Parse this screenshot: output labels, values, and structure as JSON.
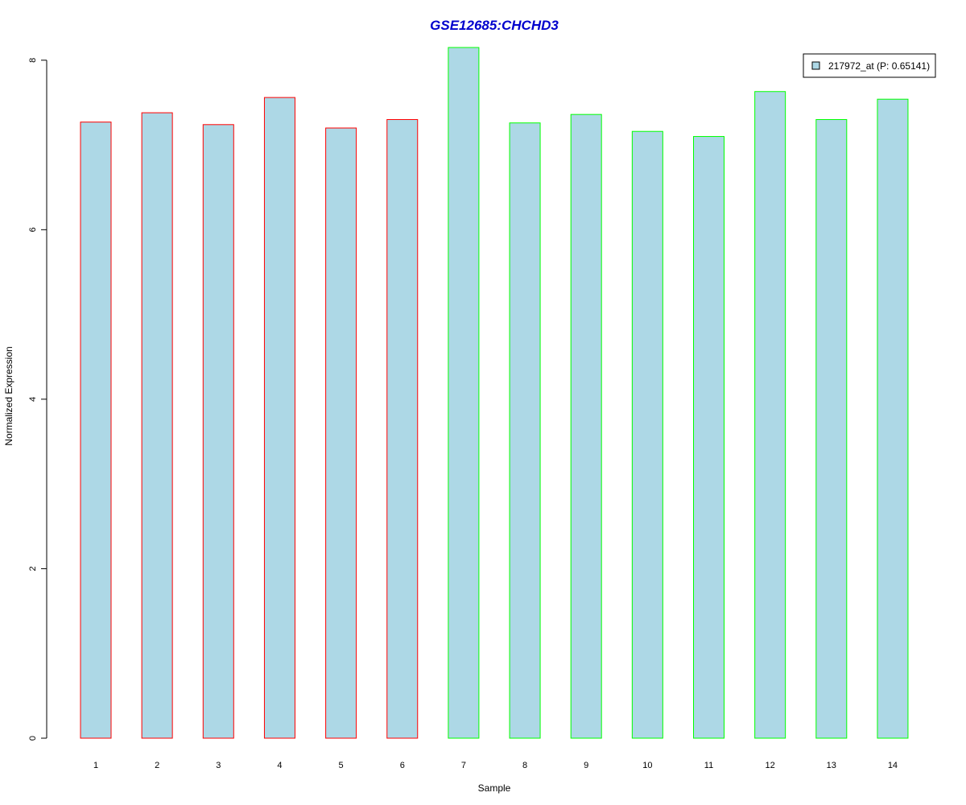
{
  "chart_data": {
    "type": "bar",
    "title": "GSE12685:CHCHD3",
    "xlabel": "Sample",
    "ylabel": "Normalized Expression",
    "categories": [
      "1",
      "2",
      "3",
      "4",
      "5",
      "6",
      "7",
      "8",
      "9",
      "10",
      "11",
      "12",
      "13",
      "14"
    ],
    "series": [
      {
        "name": "217972_at (P: 0.65141)",
        "values": [
          7.27,
          7.38,
          7.24,
          7.56,
          7.2,
          7.3,
          8.15,
          7.26,
          7.36,
          7.16,
          7.1,
          7.63,
          7.3,
          7.54
        ]
      }
    ],
    "group_outline": [
      "red",
      "red",
      "red",
      "red",
      "red",
      "red",
      "green",
      "green",
      "green",
      "green",
      "green",
      "green",
      "green",
      "green"
    ],
    "yticks": [
      0,
      2,
      4,
      6,
      8
    ],
    "ylim": [
      0,
      8.15
    ],
    "grid": false,
    "legend_position": "top-right",
    "colors": {
      "bar_fill": "#add8e6",
      "outline_red": "#ff0000",
      "outline_green": "#00ff00",
      "title": "#0000cd",
      "axis": "#000000"
    }
  }
}
